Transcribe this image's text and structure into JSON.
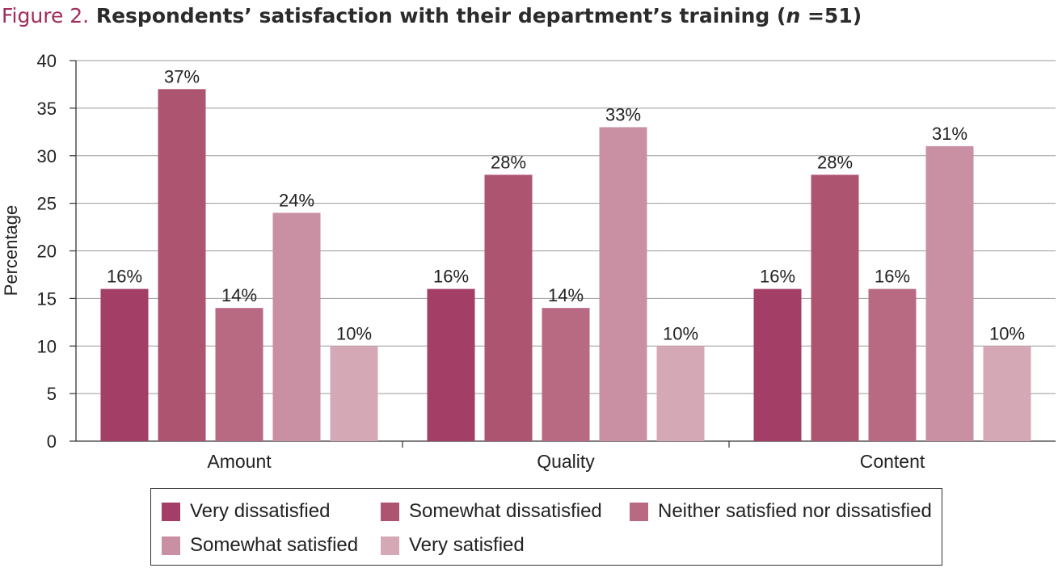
{
  "title": {
    "figure_label": "Figure 2.",
    "text": " Respondents’ satisfaction with their department’s training (",
    "n_symbol": "n",
    "n_value": " =51)"
  },
  "chart_data": {
    "type": "bar",
    "title": "Figure 2. Respondents’ satisfaction with their department’s training (n =51)",
    "xlabel": "",
    "ylabel": "Percentage",
    "ylim": [
      0,
      40
    ],
    "yticks": [
      0,
      5,
      10,
      15,
      20,
      25,
      30,
      35,
      40
    ],
    "grid": true,
    "legend_position": "bottom",
    "categories": [
      "Amount",
      "Quality",
      "Content"
    ],
    "series": [
      {
        "name": "Very dissatisfied",
        "color": "#a33e66",
        "values": [
          16,
          16,
          16
        ],
        "labels": [
          "16%",
          "16%",
          "16%"
        ]
      },
      {
        "name": "Somewhat dissatisfied",
        "color": "#ad5470",
        "values": [
          37,
          28,
          28
        ],
        "labels": [
          "37%",
          "28%",
          "28%"
        ]
      },
      {
        "name": "Neither satisfied nor dissatisfied",
        "color": "#b86a83",
        "values": [
          14,
          14,
          16
        ],
        "labels": [
          "14%",
          "14%",
          "16%"
        ]
      },
      {
        "name": "Somewhat satisfied",
        "color": "#c98fa2",
        "values": [
          24,
          33,
          31
        ],
        "labels": [
          "24%",
          "33%",
          "31%"
        ]
      },
      {
        "name": "Very satisfied",
        "color": "#d5a8b6",
        "values": [
          10,
          10,
          10
        ],
        "labels": [
          "10%",
          "10%",
          "10%"
        ]
      }
    ]
  }
}
